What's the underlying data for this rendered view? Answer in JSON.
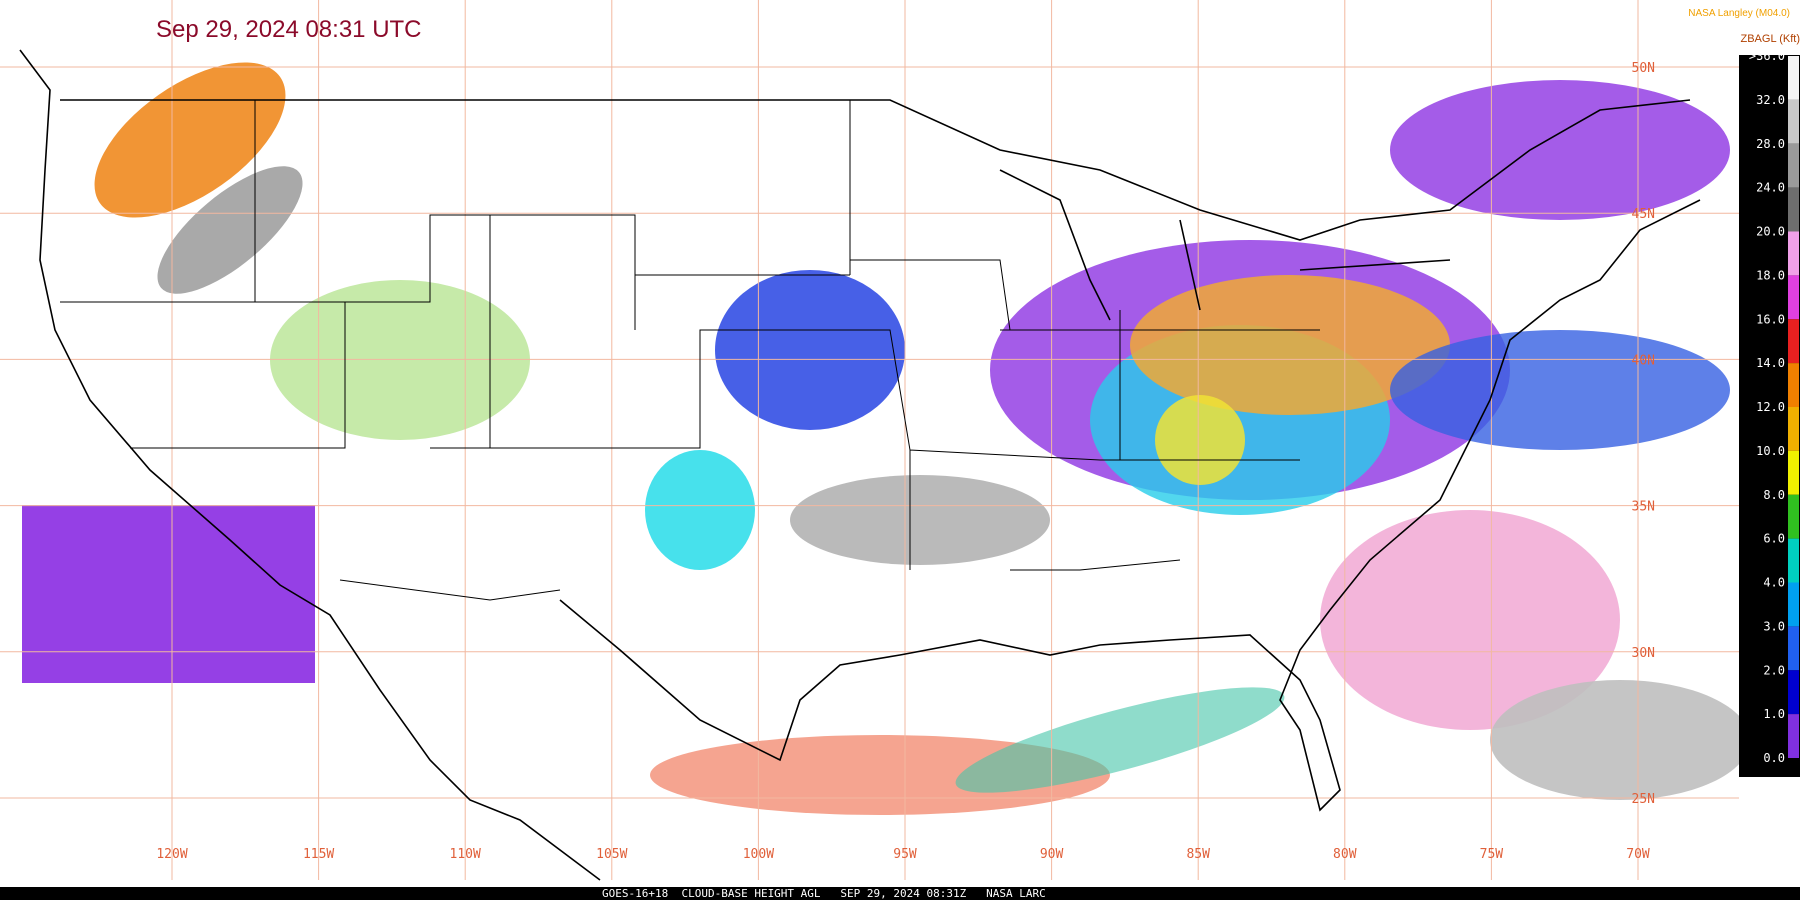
{
  "header": {
    "title": "Sep 29, 2024 08:31 UTC",
    "credit": "NASA Langley (M04.0)"
  },
  "legend": {
    "title": "ZBAGL (Kft)",
    "labels": [
      ">36.0",
      "32.0",
      "28.0",
      "24.0",
      "20.0",
      "18.0",
      "16.0",
      "14.0",
      "12.0",
      "10.0",
      "8.0",
      "6.0",
      "4.0",
      "3.0",
      "2.0",
      "1.0",
      "0.0"
    ],
    "colors": [
      "#f4f4f4",
      "#c8c8c8",
      "#9a9a9a",
      "#6e6e6e",
      "#f0a0e8",
      "#e040e0",
      "#e82020",
      "#f08000",
      "#f0b000",
      "#f0f000",
      "#30c020",
      "#00d0c0",
      "#00a0f0",
      "#2060f0",
      "#0000d0",
      "#8030e0"
    ]
  },
  "map": {
    "longitudes": [
      "120W",
      "115W",
      "110W",
      "105W",
      "100W",
      "95W",
      "90W",
      "85W",
      "80W",
      "75W",
      "70W"
    ],
    "latitudes": [
      "50N",
      "45N",
      "40N",
      "35N",
      "30N",
      "25N"
    ]
  },
  "footer": {
    "text": "GOES-16+18  CLOUD-BASE HEIGHT AGL   SEP 29, 2024 08:31Z   NASA LARC"
  }
}
